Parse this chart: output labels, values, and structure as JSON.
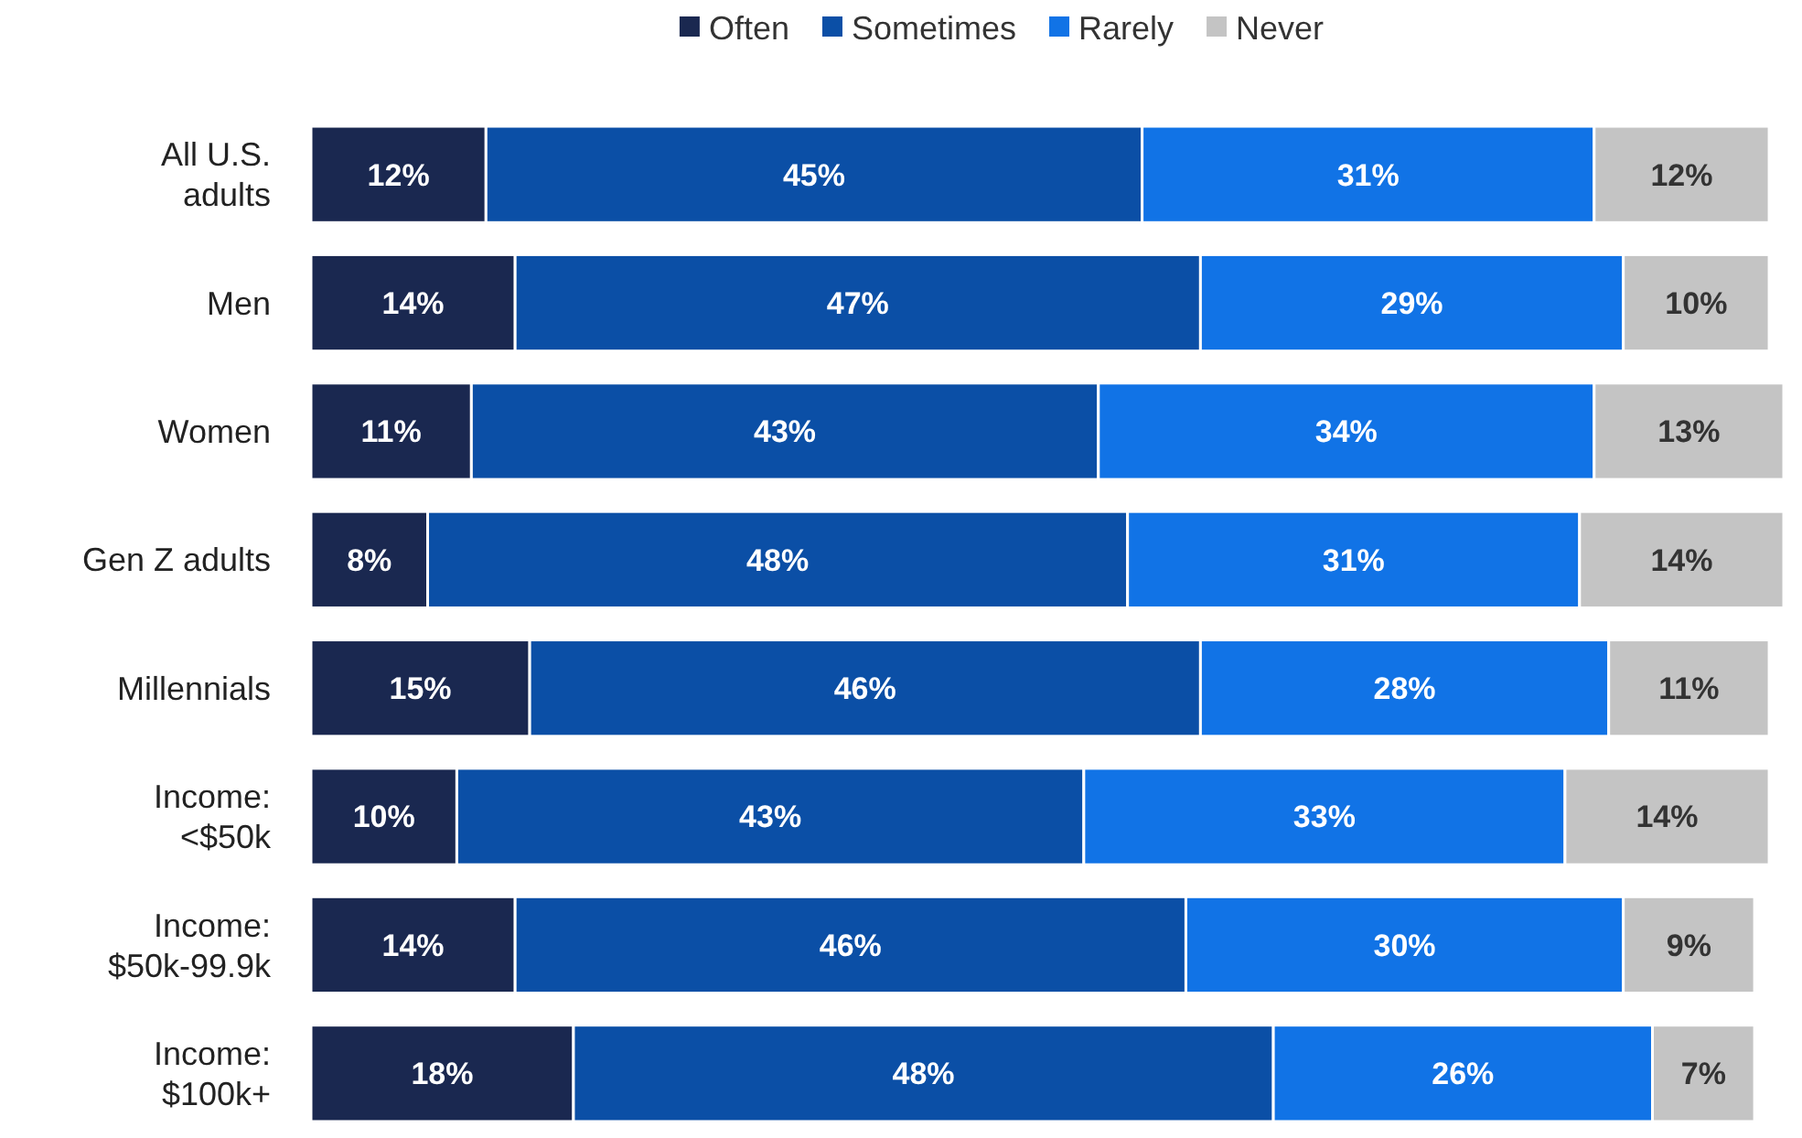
{
  "chart_data": {
    "type": "bar",
    "orientation": "horizontal",
    "stacked": true,
    "legend": "top",
    "categories": [
      "All U.S.\nadults",
      "Men",
      "Women",
      "Gen Z adults",
      "Millennials",
      "Income:\n<$50k",
      "Income:\n$50k-99.9k",
      "Income:\n$100k+"
    ],
    "series": [
      {
        "name": "Often",
        "color": "#1a2850",
        "values": [
          12,
          14,
          11,
          8,
          15,
          10,
          14,
          18
        ],
        "value_labels": [
          "12%",
          "14%",
          "11%",
          "8%",
          "15%",
          "10%",
          "14%",
          "18%"
        ]
      },
      {
        "name": "Sometimes",
        "color": "#0b4fa6",
        "values": [
          45,
          47,
          43,
          48,
          46,
          43,
          46,
          48
        ],
        "value_labels": [
          "45%",
          "47%",
          "43%",
          "48%",
          "46%",
          "43%",
          "46%",
          "48%"
        ]
      },
      {
        "name": "Rarely",
        "color": "#1173e6",
        "values": [
          31,
          29,
          34,
          31,
          28,
          33,
          30,
          26
        ],
        "value_labels": [
          "31%",
          "29%",
          "34%",
          "31%",
          "28%",
          "33%",
          "30%",
          "26%"
        ]
      },
      {
        "name": "Never",
        "color": "#c4c4c4",
        "values": [
          12,
          10,
          13,
          14,
          11,
          14,
          9,
          7
        ],
        "value_labels": [
          "12%",
          "10%",
          "13%",
          "14%",
          "11%",
          "14%",
          "9%",
          "7%"
        ]
      }
    ]
  }
}
